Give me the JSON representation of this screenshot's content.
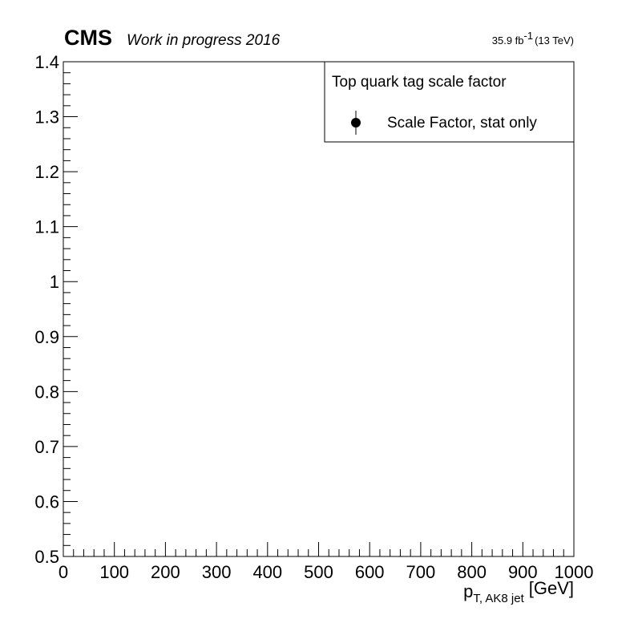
{
  "header": {
    "experiment": "CMS",
    "status": "Work in progress 2016",
    "lumi": "35.9 fb",
    "lumi_exp": "-1",
    "energy": "(13 TeV)"
  },
  "chart_data": {
    "type": "scatter",
    "xlabel_main": "p",
    "xlabel_sub": "T, AK8 jet",
    "xlabel_unit": "[GeV]",
    "ylabel": "",
    "xlim": [
      0,
      1000
    ],
    "ylim": [
      0.5,
      1.4
    ],
    "xticks": [
      "0",
      "100",
      "200",
      "300",
      "400",
      "500",
      "600",
      "700",
      "800",
      "900",
      "1000"
    ],
    "yticks": [
      "0.5",
      "0.6",
      "0.7",
      "0.8",
      "0.9",
      "1",
      "1.1",
      "1.2",
      "1.3",
      "1.4"
    ],
    "grid": false,
    "legend": {
      "placement": "top-right",
      "header": "Top quark tag scale factor",
      "entries": [
        "Scale Factor, stat only"
      ]
    },
    "series": [
      {
        "name": "Scale Factor, stat only",
        "marker": "filled-circle",
        "color": "#000000",
        "points": []
      }
    ]
  }
}
